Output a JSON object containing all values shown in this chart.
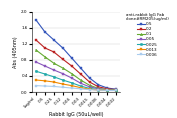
{
  "title": "",
  "xlabel": "Rabbit IgG (50uL/well)",
  "ylabel": "Abs (405nm)",
  "x_labels": [
    "1ug/ml",
    "0.5",
    "0.25",
    "0.12",
    "0.06",
    "0.03",
    "0.015",
    "0.008",
    "0.004",
    "0.002"
  ],
  "series": [
    {
      "label": "0.5",
      "color": "#3355BB",
      "marker": "s",
      "values": [
        1.8,
        1.5,
        1.3,
        1.1,
        0.85,
        0.6,
        0.35,
        0.18,
        0.1,
        0.07
      ]
    },
    {
      "label": "0.2",
      "color": "#BB2222",
      "marker": "s",
      "values": [
        1.3,
        1.1,
        1.0,
        0.82,
        0.65,
        0.45,
        0.25,
        0.13,
        0.08,
        0.06
      ]
    },
    {
      "label": "0.1",
      "color": "#66AA33",
      "marker": "^",
      "values": [
        1.05,
        0.88,
        0.72,
        0.6,
        0.46,
        0.3,
        0.17,
        0.09,
        0.06,
        0.05
      ]
    },
    {
      "label": "0.05",
      "color": "#8855BB",
      "marker": "s",
      "values": [
        0.75,
        0.65,
        0.55,
        0.46,
        0.35,
        0.22,
        0.13,
        0.08,
        0.06,
        0.04
      ]
    },
    {
      "label": "0.025",
      "color": "#22AAAA",
      "marker": "o",
      "values": [
        0.52,
        0.45,
        0.38,
        0.3,
        0.23,
        0.15,
        0.09,
        0.06,
        0.05,
        0.04
      ]
    },
    {
      "label": "0.013",
      "color": "#EE8800",
      "marker": "s",
      "values": [
        0.3,
        0.28,
        0.25,
        0.2,
        0.16,
        0.11,
        0.07,
        0.05,
        0.05,
        0.04
      ]
    },
    {
      "label": "0.006",
      "color": "#AACCEE",
      "marker": "s",
      "values": [
        0.16,
        0.15,
        0.14,
        0.12,
        0.1,
        0.08,
        0.06,
        0.05,
        0.04,
        0.04
      ]
    }
  ],
  "ylim": [
    0,
    2.0
  ],
  "yticks": [
    0,
    0.4,
    0.8,
    1.2,
    1.6,
    2.0
  ],
  "legend_title": "anti-rabbit IgG Fab\nclone#RM205(ug/ml)",
  "background_color": "#ffffff"
}
